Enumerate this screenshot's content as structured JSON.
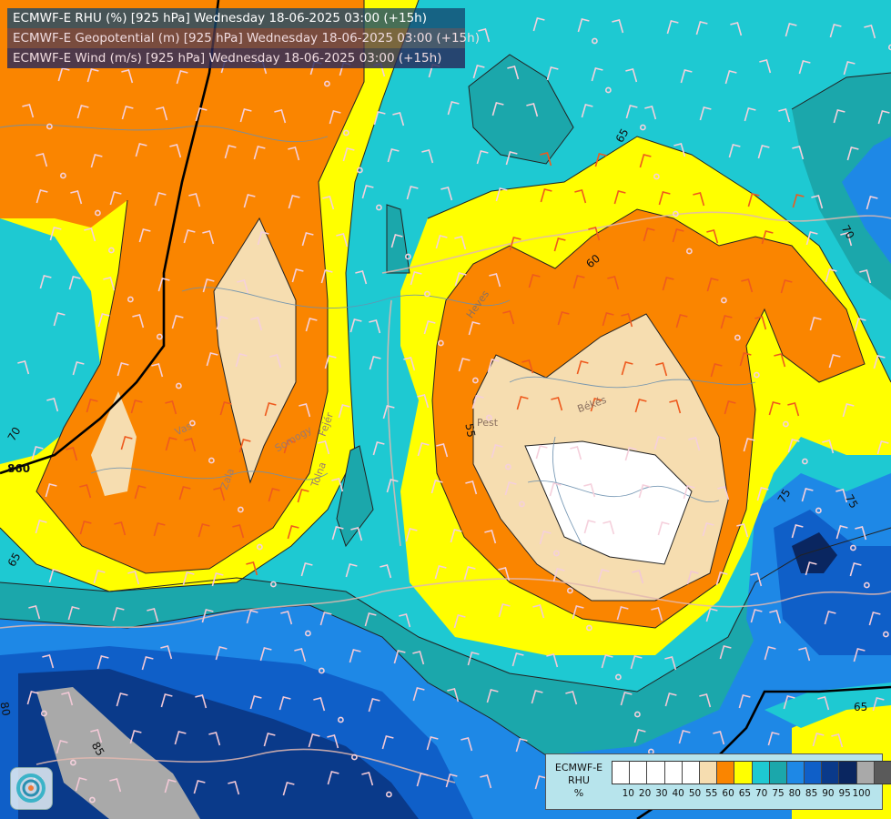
{
  "titles": {
    "line1": "ECMWF-E RHU (%) [925 hPa] Wednesday 18-06-2025 03:00 (+15h)",
    "line2": "ECMWF-E Geopotential (m) [925 hPa] Wednesday 18-06-2025 03:00 (+15h)",
    "line3": "ECMWF-E Wind (m/s) [925 hPa] Wednesday 18-06-2025 03:00 (+15h)"
  },
  "legend": {
    "line1": "ECMWF-E",
    "line2": "RHU",
    "line3": "%",
    "colors": [
      "#ffffff",
      "#ffffff",
      "#ffffff",
      "#ffffff",
      "#ffffff",
      "#f6ddb0",
      "#fa8500",
      "#ffff00",
      "#1ec9d2",
      "#1ba7ab",
      "#1e88e6",
      "#0f5fc8",
      "#0a3a8a",
      "#0a2660",
      "#a9a9a9",
      "#5a5a5a"
    ],
    "labels": [
      "10",
      "20",
      "30",
      "40",
      "50",
      "55",
      "60",
      "65",
      "70",
      "75",
      "80",
      "85",
      "90",
      "95",
      "100"
    ]
  },
  "place_names": {
    "pest": "Pest",
    "bekes": "Békés",
    "heves": "Heves",
    "vas": "Vas",
    "somogy": "Somogy",
    "fejer": "Fejér",
    "zala": "Zala",
    "tolna": "Tolna"
  },
  "isoline_labels": {
    "g860": "860",
    "c65_top": "65",
    "c60": "60",
    "c70_right": "70",
    "c70_left": "70",
    "c65_left": "65",
    "c75a": "75",
    "c75b": "75",
    "c55": "55",
    "c65_br": "65",
    "c80": "80",
    "c85": "85"
  },
  "icons": {
    "logo": "ecmwf-swirl-logo-icon",
    "wind": "wind-barb-icon"
  }
}
